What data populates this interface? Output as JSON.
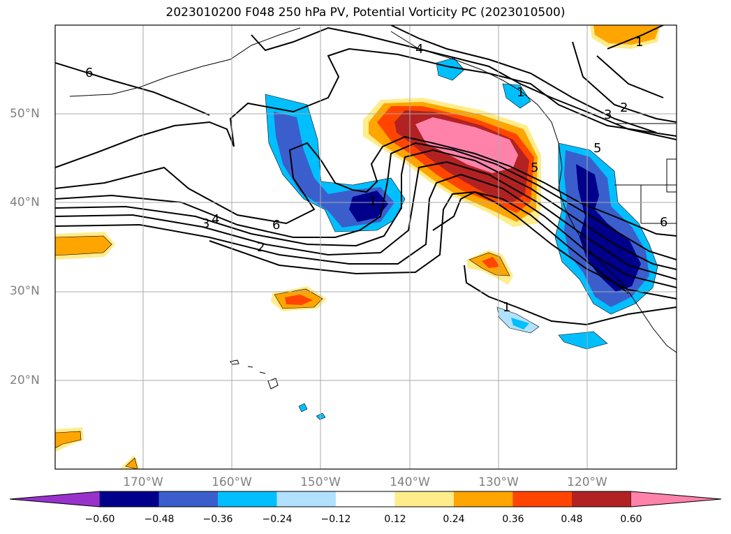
{
  "title": "2023010200 F048 250 hPa PV, Potential Vorticity PC (2023010500)",
  "map": {
    "lon_range": [
      -180,
      -110
    ],
    "lat_range": [
      10,
      60
    ],
    "lat_labels": [
      "20°N",
      "30°N",
      "40°N",
      "50°N"
    ],
    "lon_labels": [
      "170°W",
      "160°W",
      "150°W",
      "140°W",
      "130°W",
      "120°W"
    ],
    "contour_labels": [
      "6",
      "4",
      "3",
      "2",
      "1",
      "6",
      "4",
      "3",
      "2",
      "1",
      "5",
      "6",
      "1",
      "5",
      "1"
    ]
  },
  "colorbar": {
    "ticks": [
      "−0.60",
      "−0.48",
      "−0.36",
      "−0.24",
      "−0.12",
      "0.12",
      "0.24",
      "0.36",
      "0.48",
      "0.60"
    ],
    "colors": [
      "#9932cc",
      "#00008b",
      "#3a5fcd",
      "#00bfff",
      "#b0e2ff",
      "#ffffff",
      "#ffec8b",
      "#ffa500",
      "#ff4500",
      "#b22222",
      "#ff82ab"
    ]
  }
}
